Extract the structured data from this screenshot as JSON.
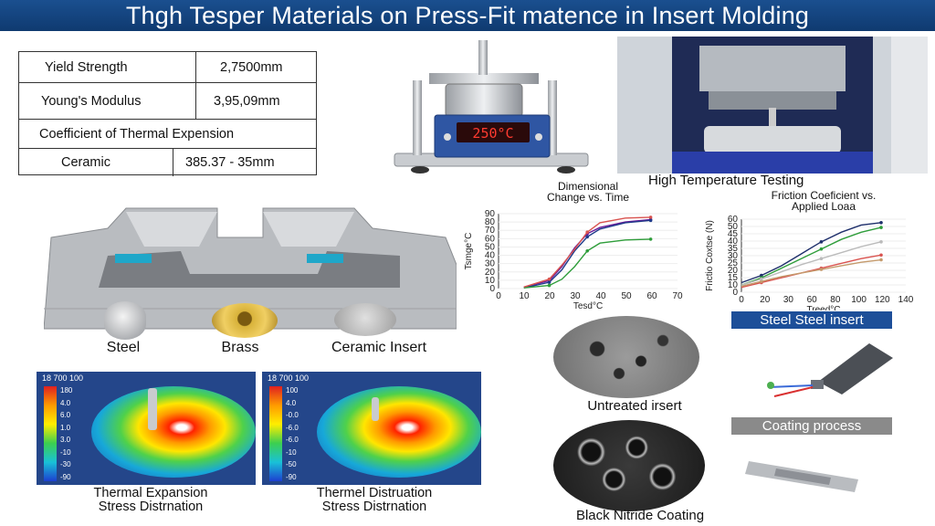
{
  "title": "Thgh Tesper Materials on Press-Fit matence in Insert Molding",
  "properties": [
    {
      "label": "Yield Strength",
      "value": "2,7500mm"
    },
    {
      "label": "Young's Modulus",
      "value": "3,95,09mm"
    },
    {
      "label": "Coefficient of Thermal Expension",
      "value": ""
    },
    {
      "label": "Ceramic",
      "value": "385.37 - 35mm"
    }
  ],
  "tester": {
    "display": "250°C",
    "caption": "High Temperature Testing"
  },
  "inserts": [
    "Steel",
    "Brass",
    "Ceramic Insert"
  ],
  "thermal_panels": [
    {
      "header": "18 700 100",
      "scale": [
        "180",
        "4.0",
        "6.0",
        "1.0",
        "3.0",
        "-10",
        "-30",
        "-90"
      ],
      "caption_line1": "Thermal Expansion",
      "caption_line2": "Stress Distrnation"
    },
    {
      "header": "18 700 100",
      "scale": [
        "100",
        "4.0",
        "-0.0",
        "-6.0",
        "-6.0",
        "-10",
        "-50",
        "-90"
      ],
      "caption_line1": "Thermel Distruation",
      "caption_line2": "Stress Distrnation"
    }
  ],
  "chart_data": [
    {
      "type": "line",
      "title": "Dimensional\nChange vs. Time",
      "xlabel": "Tesd°C",
      "ylabel": "Tsmge°C",
      "x_ticks": [
        "0",
        "10",
        "20",
        "30",
        "40",
        "50",
        "60",
        "70"
      ],
      "y_ticks": [
        "0",
        "10",
        "20",
        "30",
        "40",
        "50",
        "60",
        "70",
        "80",
        "90"
      ],
      "xlim": [
        0,
        70
      ],
      "ylim": [
        0,
        90
      ],
      "series": [
        {
          "color": "#6a1b9a",
          "x": [
            10,
            20,
            25,
            30,
            35,
            40,
            50,
            60
          ],
          "y": [
            2,
            10,
            28,
            52,
            70,
            78,
            85,
            88
          ]
        },
        {
          "color": "#1e3a8a",
          "x": [
            10,
            20,
            25,
            30,
            35,
            40,
            50,
            60
          ],
          "y": [
            1,
            8,
            24,
            48,
            66,
            76,
            84,
            87
          ]
        },
        {
          "color": "#2e9d3a",
          "x": [
            10,
            20,
            25,
            30,
            35,
            40,
            50,
            60
          ],
          "y": [
            1,
            4,
            12,
            28,
            48,
            58,
            62,
            63
          ]
        },
        {
          "color": "#d9534f",
          "x": [
            10,
            20,
            25,
            30,
            35,
            40,
            50,
            60
          ],
          "y": [
            2,
            12,
            30,
            50,
            72,
            84,
            90,
            91
          ]
        }
      ]
    },
    {
      "type": "line",
      "title": "Friction Coeficient vs.\nApplied Loaa",
      "xlabel": "Treed°C",
      "ylabel": "Frictio Coxtse (N)",
      "x_ticks": [
        "0",
        "20",
        "30",
        "60",
        "80",
        "100",
        "120",
        "140"
      ],
      "y_ticks": [
        "0",
        "10",
        "15",
        "20",
        "25",
        "30",
        "35",
        "40",
        "45",
        "50",
        "60"
      ],
      "series": [
        {
          "color": "#1e2f6b",
          "x": [
            0,
            20,
            40,
            60,
            80,
            100,
            120,
            140
          ],
          "y": [
            8,
            14,
            22,
            32,
            42,
            50,
            56,
            58
          ]
        },
        {
          "color": "#2e9d3a",
          "x": [
            0,
            20,
            40,
            60,
            80,
            100,
            120,
            140
          ],
          "y": [
            6,
            12,
            20,
            28,
            36,
            44,
            50,
            54
          ]
        },
        {
          "color": "#d9534f",
          "x": [
            0,
            20,
            40,
            60,
            80,
            100,
            120,
            140
          ],
          "y": [
            4,
            8,
            12,
            16,
            20,
            24,
            28,
            31
          ]
        },
        {
          "color": "#c49a6c",
          "x": [
            0,
            20,
            40,
            60,
            80,
            100,
            120,
            140
          ],
          "y": [
            5,
            9,
            13,
            16,
            19,
            22,
            25,
            27
          ]
        },
        {
          "color": "#bbbbbb",
          "x": [
            0,
            20,
            40,
            60,
            80,
            100,
            120,
            140
          ],
          "y": [
            6,
            11,
            17,
            23,
            28,
            33,
            38,
            42
          ]
        }
      ]
    }
  ],
  "micro": {
    "label_steel": "Steel Steel insert",
    "label_untreated": "Untreated irsert",
    "label_coating": "Coating process",
    "label_nitride": "Black Nitride Coating"
  }
}
